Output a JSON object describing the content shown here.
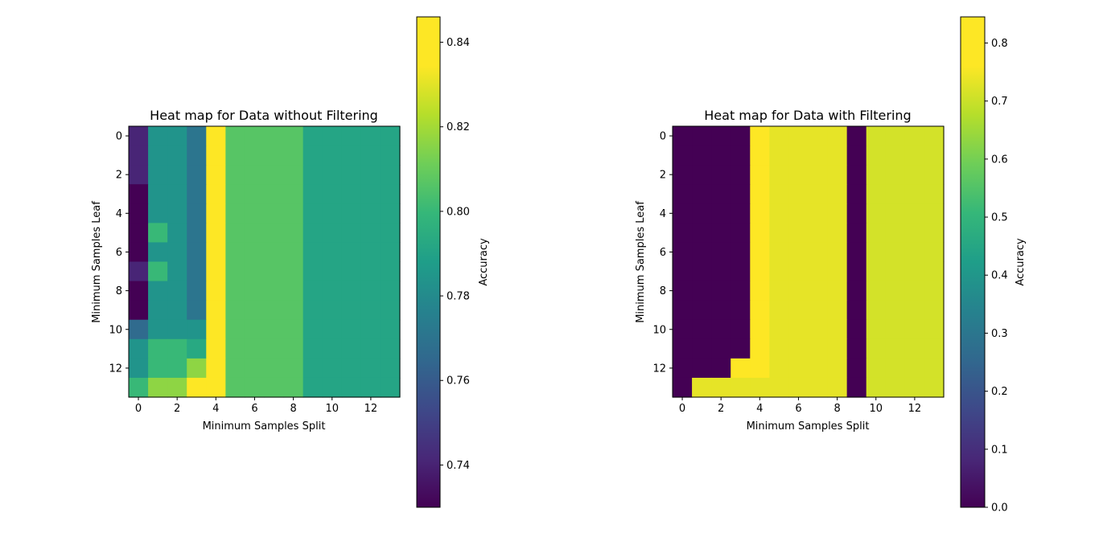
{
  "chart_data": [
    {
      "type": "heatmap",
      "title": "Heat map for Data without Filtering",
      "xlabel": "Minimum Samples Split",
      "ylabel": "Minimum Samples Leaf",
      "x_ticks": [
        0,
        2,
        4,
        6,
        8,
        10,
        12
      ],
      "y_ticks": [
        0,
        2,
        4,
        6,
        8,
        10,
        12
      ],
      "colorbar": {
        "label": "Accuracy",
        "min": 0.73,
        "max": 0.846,
        "ticks": [
          0.74,
          0.76,
          0.78,
          0.8,
          0.82,
          0.84
        ],
        "tick_labels": [
          "0.74",
          "0.76",
          "0.78",
          "0.80",
          "0.82",
          "0.84"
        ]
      },
      "colormap": "viridis",
      "values": [
        [
          0.742,
          0.79,
          0.79,
          0.775,
          0.846,
          0.815,
          0.815,
          0.815,
          0.815,
          0.798,
          0.798,
          0.798,
          0.798,
          0.798
        ],
        [
          0.742,
          0.79,
          0.79,
          0.775,
          0.846,
          0.815,
          0.815,
          0.815,
          0.815,
          0.798,
          0.798,
          0.798,
          0.798,
          0.798
        ],
        [
          0.742,
          0.79,
          0.79,
          0.775,
          0.846,
          0.815,
          0.815,
          0.815,
          0.815,
          0.798,
          0.798,
          0.798,
          0.798,
          0.798
        ],
        [
          0.73,
          0.79,
          0.79,
          0.775,
          0.846,
          0.815,
          0.815,
          0.815,
          0.815,
          0.798,
          0.798,
          0.798,
          0.798,
          0.798
        ],
        [
          0.73,
          0.79,
          0.79,
          0.775,
          0.846,
          0.815,
          0.815,
          0.815,
          0.815,
          0.798,
          0.798,
          0.798,
          0.798,
          0.798
        ],
        [
          0.73,
          0.808,
          0.79,
          0.775,
          0.846,
          0.815,
          0.815,
          0.815,
          0.815,
          0.798,
          0.798,
          0.798,
          0.798,
          0.798
        ],
        [
          0.73,
          0.79,
          0.79,
          0.775,
          0.846,
          0.815,
          0.815,
          0.815,
          0.815,
          0.798,
          0.798,
          0.798,
          0.798,
          0.798
        ],
        [
          0.742,
          0.808,
          0.79,
          0.775,
          0.846,
          0.815,
          0.815,
          0.815,
          0.815,
          0.798,
          0.798,
          0.798,
          0.798,
          0.798
        ],
        [
          0.73,
          0.79,
          0.79,
          0.775,
          0.846,
          0.815,
          0.815,
          0.815,
          0.815,
          0.798,
          0.798,
          0.798,
          0.798,
          0.798
        ],
        [
          0.73,
          0.79,
          0.79,
          0.775,
          0.846,
          0.815,
          0.815,
          0.815,
          0.815,
          0.798,
          0.798,
          0.798,
          0.798,
          0.798
        ],
        [
          0.77,
          0.79,
          0.79,
          0.79,
          0.846,
          0.815,
          0.815,
          0.815,
          0.815,
          0.798,
          0.798,
          0.798,
          0.798,
          0.798
        ],
        [
          0.79,
          0.808,
          0.808,
          0.8,
          0.846,
          0.815,
          0.815,
          0.815,
          0.815,
          0.798,
          0.798,
          0.798,
          0.798,
          0.798
        ],
        [
          0.79,
          0.808,
          0.808,
          0.826,
          0.846,
          0.815,
          0.815,
          0.815,
          0.815,
          0.798,
          0.798,
          0.798,
          0.798,
          0.798
        ],
        [
          0.808,
          0.826,
          0.826,
          0.846,
          0.846,
          0.815,
          0.815,
          0.815,
          0.815,
          0.798,
          0.798,
          0.798,
          0.798,
          0.798
        ]
      ]
    },
    {
      "type": "heatmap",
      "title": "Heat map for Data with Filtering",
      "xlabel": "Minimum Samples Split",
      "ylabel": "Minimum Samples Leaf",
      "x_ticks": [
        0,
        2,
        4,
        6,
        8,
        10,
        12
      ],
      "y_ticks": [
        0,
        2,
        4,
        6,
        8,
        10,
        12
      ],
      "colorbar": {
        "label": "Accuracy",
        "min": 0.0,
        "max": 0.845,
        "ticks": [
          0.0,
          0.1,
          0.2,
          0.3,
          0.4,
          0.5,
          0.6,
          0.7,
          0.8
        ],
        "tick_labels": [
          "0.0",
          "0.1",
          "0.2",
          "0.3",
          "0.4",
          "0.5",
          "0.6",
          "0.7",
          "0.8"
        ]
      },
      "colormap": "viridis",
      "values": [
        [
          0,
          0,
          0,
          0,
          0.845,
          0.815,
          0.815,
          0.815,
          0.815,
          0,
          0.79,
          0.79,
          0.79,
          0.79
        ],
        [
          0,
          0,
          0,
          0,
          0.845,
          0.815,
          0.815,
          0.815,
          0.815,
          0,
          0.79,
          0.79,
          0.79,
          0.79
        ],
        [
          0,
          0,
          0,
          0,
          0.845,
          0.815,
          0.815,
          0.815,
          0.815,
          0,
          0.79,
          0.79,
          0.79,
          0.79
        ],
        [
          0,
          0,
          0,
          0,
          0.845,
          0.815,
          0.815,
          0.815,
          0.815,
          0,
          0.79,
          0.79,
          0.79,
          0.79
        ],
        [
          0,
          0,
          0,
          0,
          0.845,
          0.815,
          0.815,
          0.815,
          0.815,
          0,
          0.79,
          0.79,
          0.79,
          0.79
        ],
        [
          0,
          0,
          0,
          0,
          0.845,
          0.815,
          0.815,
          0.815,
          0.815,
          0,
          0.79,
          0.79,
          0.79,
          0.79
        ],
        [
          0,
          0,
          0,
          0,
          0.845,
          0.815,
          0.815,
          0.815,
          0.815,
          0,
          0.79,
          0.79,
          0.79,
          0.79
        ],
        [
          0,
          0,
          0,
          0,
          0.845,
          0.815,
          0.815,
          0.815,
          0.815,
          0,
          0.79,
          0.79,
          0.79,
          0.79
        ],
        [
          0,
          0,
          0,
          0,
          0.845,
          0.815,
          0.815,
          0.815,
          0.815,
          0,
          0.79,
          0.79,
          0.79,
          0.79
        ],
        [
          0,
          0,
          0,
          0,
          0.845,
          0.815,
          0.815,
          0.815,
          0.815,
          0,
          0.79,
          0.79,
          0.79,
          0.79
        ],
        [
          0,
          0,
          0,
          0,
          0.845,
          0.815,
          0.815,
          0.815,
          0.815,
          0,
          0.79,
          0.79,
          0.79,
          0.79
        ],
        [
          0,
          0,
          0,
          0,
          0.845,
          0.815,
          0.815,
          0.815,
          0.815,
          0,
          0.79,
          0.79,
          0.79,
          0.79
        ],
        [
          0,
          0,
          0,
          0.845,
          0.845,
          0.815,
          0.815,
          0.815,
          0.815,
          0,
          0.79,
          0.79,
          0.79,
          0.79
        ],
        [
          0,
          0.815,
          0.815,
          0.815,
          0.815,
          0.815,
          0.815,
          0.815,
          0.815,
          0,
          0.79,
          0.79,
          0.79,
          0.79
        ]
      ]
    }
  ]
}
